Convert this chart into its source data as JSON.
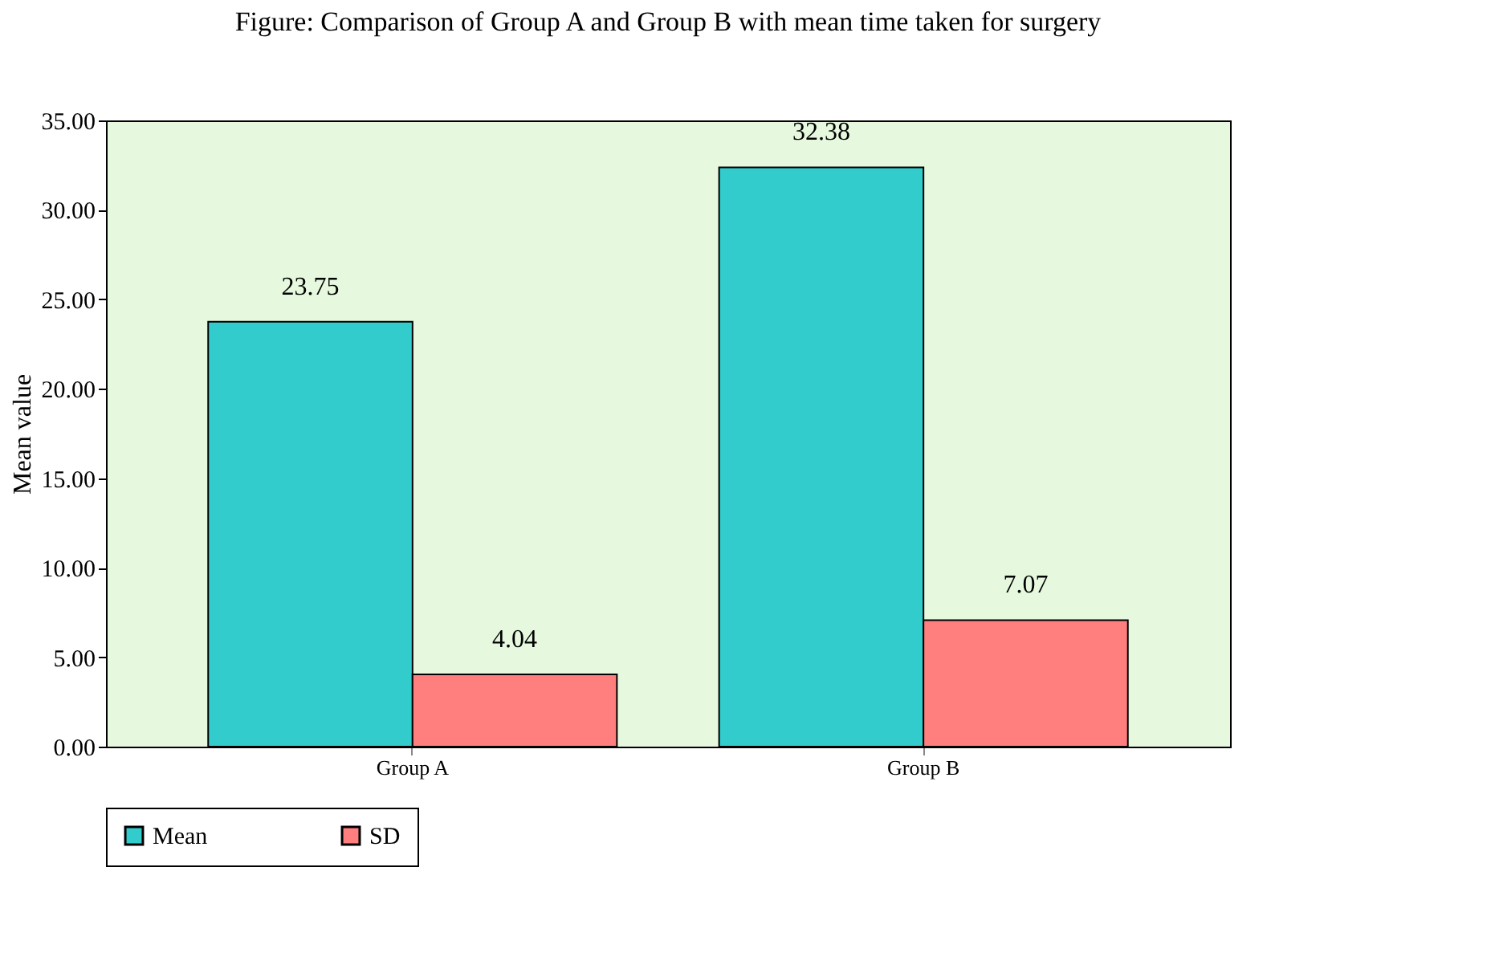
{
  "chart_data": {
    "type": "bar",
    "title": "Figure:  Comparison of Group A and Group B with mean time taken for surgery",
    "ylabel": "Mean value",
    "categories": [
      "Group A",
      "Group B"
    ],
    "series": [
      {
        "name": "Mean",
        "color": "#33cccc",
        "values": [
          23.75,
          32.38
        ]
      },
      {
        "name": "SD",
        "color": "#ff7f7f",
        "values": [
          4.04,
          7.07
        ]
      }
    ],
    "ylim": [
      0,
      35
    ],
    "yticks": [
      {
        "value": 0,
        "label": "0.00"
      },
      {
        "value": 5,
        "label": "5.00"
      },
      {
        "value": 10,
        "label": "10.00"
      },
      {
        "value": 15,
        "label": "15.00"
      },
      {
        "value": 20,
        "label": "20.00"
      },
      {
        "value": 25,
        "label": "25.00"
      },
      {
        "value": 30,
        "label": "30.00"
      },
      {
        "value": 35,
        "label": "35.00"
      }
    ],
    "data_labels": true,
    "legend": "bottom",
    "grid": false
  }
}
